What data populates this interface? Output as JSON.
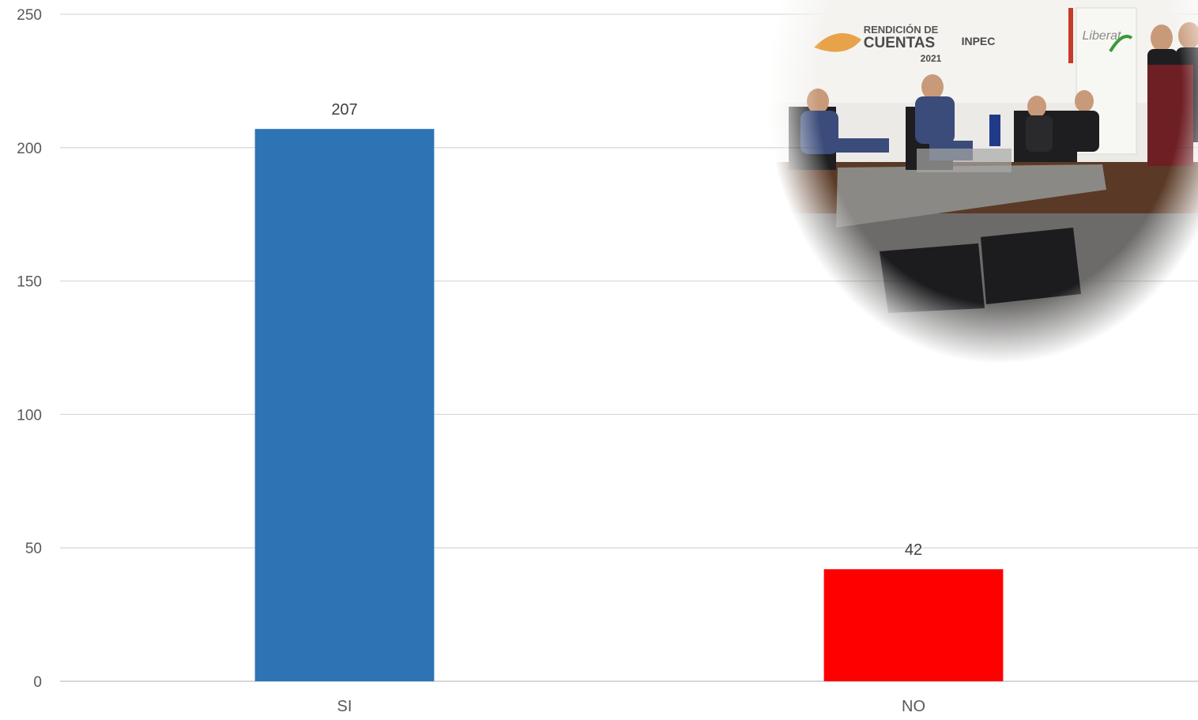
{
  "chart_data": {
    "type": "bar",
    "categories": [
      "SI",
      "NO"
    ],
    "values": [
      207,
      42
    ],
    "bar_colors": [
      "#2e74b5",
      "#ff0000"
    ],
    "ylim": [
      0,
      250
    ],
    "yticks": [
      0,
      50,
      100,
      150,
      200,
      250
    ],
    "grid": true,
    "data_labels": true,
    "title": "",
    "xlabel": "",
    "ylabel": ""
  },
  "photo": {
    "banner_lines": [
      "RENDICIÓN DE",
      "CUENTAS",
      "INPEC",
      "2021"
    ],
    "side_logo": "Liberat",
    "colors": {
      "stage_wall": "#eceae6",
      "stage_floor": "#5a3a26",
      "uniform": "#3b4c7a",
      "rug": "#8a8985",
      "carpet": "#6c6b69",
      "lectern": "#6e1f24"
    }
  }
}
